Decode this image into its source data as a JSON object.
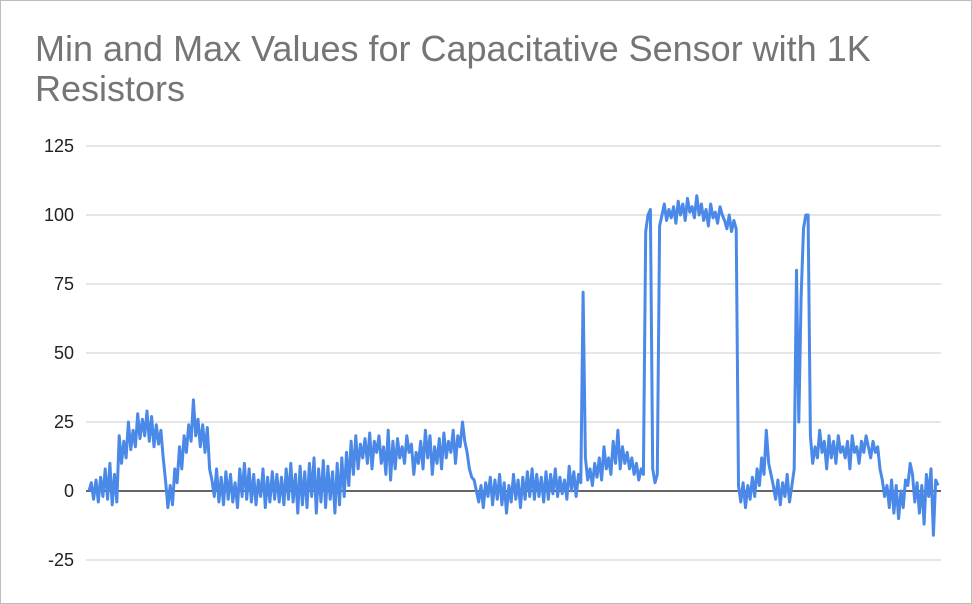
{
  "chart_data": {
    "type": "line",
    "title": "Min and Max Values for Capacitative Sensor with 1K Resistors",
    "xlabel": "",
    "ylabel": "",
    "ylim": [
      -25,
      125
    ],
    "y_ticks": [
      "125",
      "100",
      "75",
      "50",
      "25",
      "0",
      "-25"
    ],
    "grid": true,
    "legend": "none",
    "series_color": "#4a89e8",
    "series": [
      {
        "values": [
          0,
          3,
          -3,
          4,
          -4,
          5,
          -2,
          8,
          -3,
          10,
          -5,
          6,
          -4,
          20,
          10,
          18,
          12,
          25,
          15,
          22,
          16,
          28,
          19,
          26,
          20,
          29,
          18,
          27,
          16,
          24,
          17,
          22,
          12,
          4,
          -6,
          2,
          -5,
          8,
          3,
          16,
          8,
          20,
          14,
          24,
          18,
          33,
          20,
          26,
          16,
          24,
          14,
          23,
          8,
          4,
          -2,
          8,
          -4,
          5,
          -5,
          7,
          -3,
          6,
          -4,
          3,
          -6,
          8,
          -2,
          10,
          -3,
          8,
          -4,
          6,
          -5,
          4,
          -2,
          8,
          -6,
          5,
          -4,
          7,
          -3,
          6,
          -4,
          5,
          -5,
          8,
          -3,
          10,
          -4,
          6,
          -8,
          9,
          -5,
          7,
          -6,
          10,
          -2,
          12,
          -8,
          8,
          -4,
          11,
          -6,
          9,
          -3,
          7,
          -8,
          10,
          -5,
          12,
          -2,
          14,
          2,
          18,
          6,
          20,
          8,
          17,
          12,
          19,
          10,
          21,
          8,
          18,
          14,
          20,
          10,
          16,
          6,
          22,
          4,
          18,
          8,
          19,
          12,
          16,
          10,
          20,
          14,
          17,
          6,
          14,
          10,
          18,
          8,
          22,
          12,
          20,
          6,
          16,
          10,
          19,
          8,
          21,
          12,
          18,
          14,
          22,
          10,
          20,
          16,
          25,
          18,
          14,
          8,
          5,
          4,
          0,
          -4,
          2,
          -6,
          3,
          -2,
          5,
          -5,
          4,
          -3,
          6,
          -5,
          3,
          -8,
          2,
          -4,
          6,
          -3,
          4,
          -6,
          5,
          -3,
          7,
          -2,
          8,
          -3,
          6,
          -2,
          5,
          -4,
          7,
          -3,
          6,
          -1,
          8,
          -2,
          5,
          -1,
          4,
          -3,
          9,
          0,
          7,
          -2,
          6,
          3,
          72,
          12,
          4,
          8,
          2,
          10,
          5,
          12,
          4,
          16,
          8,
          12,
          6,
          18,
          10,
          22,
          8,
          16,
          10,
          14,
          8,
          12,
          6,
          10,
          4,
          8,
          6,
          94,
          100,
          102,
          8,
          3,
          6,
          96,
          100,
          104,
          98,
          102,
          99,
          103,
          97,
          105,
          100,
          104,
          98,
          106,
          101,
          103,
          99,
          107,
          100,
          104,
          98,
          102,
          96,
          104,
          99,
          101,
          97,
          103,
          100,
          98,
          95,
          100,
          94,
          98,
          95,
          2,
          -4,
          3,
          -6,
          2,
          -3,
          5,
          -2,
          8,
          2,
          12,
          6,
          22,
          10,
          6,
          2,
          -3,
          4,
          -5,
          3,
          -2,
          6,
          -4,
          2,
          8,
          80,
          25,
          70,
          95,
          100,
          100,
          20,
          10,
          16,
          12,
          22,
          14,
          18,
          8,
          20,
          12,
          18,
          10,
          20,
          14,
          16,
          12,
          18,
          8,
          20,
          14,
          16,
          10,
          18,
          14,
          20,
          16,
          12,
          18,
          14,
          16,
          8,
          4,
          -2,
          2,
          -6,
          4,
          -8,
          2,
          -10,
          0,
          -6,
          4,
          2,
          10,
          6,
          -4,
          3,
          -8,
          2,
          -12,
          6,
          -2,
          8,
          -16,
          4,
          2
        ]
      }
    ]
  }
}
